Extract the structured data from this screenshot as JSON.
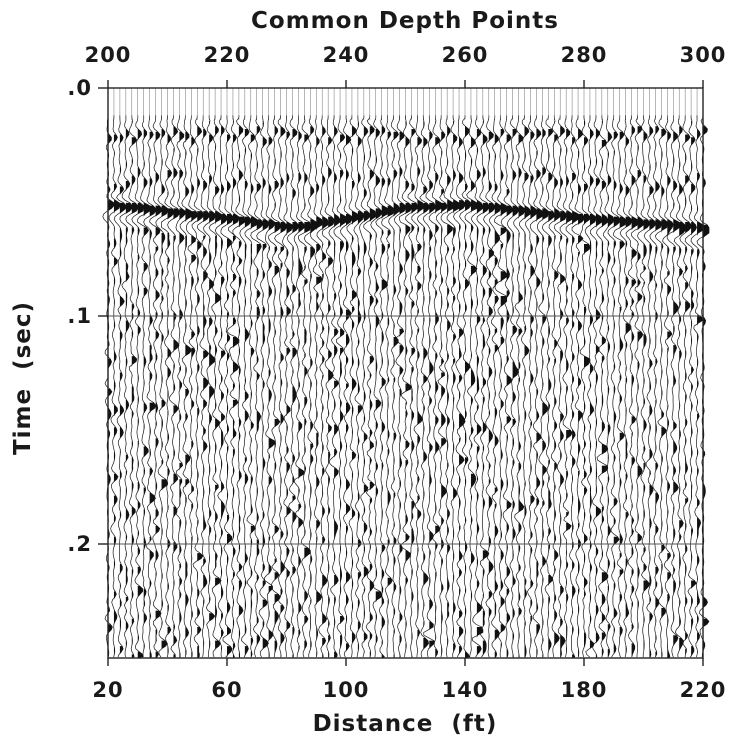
{
  "chart_data": {
    "type": "seismic-section",
    "top_axis": {
      "title": "Common Depth Points",
      "range": [
        200,
        300
      ],
      "ticks": [
        {
          "value": 200,
          "label": "200"
        },
        {
          "value": 220,
          "label": "220"
        },
        {
          "value": 240,
          "label": "240"
        },
        {
          "value": 260,
          "label": "260"
        },
        {
          "value": 280,
          "label": "280"
        },
        {
          "value": 300,
          "label": "300"
        }
      ]
    },
    "bottom_axis": {
      "title": "Distance  (ft)",
      "range": [
        20,
        220
      ],
      "ticks": [
        {
          "value": 20,
          "label": "20"
        },
        {
          "value": 60,
          "label": "60"
        },
        {
          "value": 100,
          "label": "100"
        },
        {
          "value": 140,
          "label": "140"
        },
        {
          "value": 180,
          "label": "180"
        },
        {
          "value": 220,
          "label": "220"
        }
      ]
    },
    "left_axis": {
      "title": "Time  (sec)",
      "range": [
        0.0,
        0.25
      ],
      "inverted": true,
      "ticks": [
        {
          "value": 0.0,
          "label": ".0"
        },
        {
          "value": 0.1,
          "label": ".1"
        },
        {
          "value": 0.2,
          "label": ".2"
        }
      ]
    },
    "traces": {
      "first_cdp": 200,
      "last_cdp": 300,
      "cdp_step": 1,
      "display": "wiggle-trace variable-area (positive lobes filled black)"
    },
    "timing_lines_sec": [
      0.0,
      0.1,
      0.2
    ],
    "reflector_sec": [
      {
        "distance_ft": 20,
        "time_sec": 0.051
      },
      {
        "distance_ft": 40,
        "time_sec": 0.054
      },
      {
        "distance_ft": 60,
        "time_sec": 0.057
      },
      {
        "distance_ft": 80,
        "time_sec": 0.061
      },
      {
        "distance_ft": 100,
        "time_sec": 0.057
      },
      {
        "distance_ft": 120,
        "time_sec": 0.052
      },
      {
        "distance_ft": 140,
        "time_sec": 0.051
      },
      {
        "distance_ft": 160,
        "time_sec": 0.054
      },
      {
        "distance_ft": 180,
        "time_sec": 0.057
      },
      {
        "distance_ft": 200,
        "time_sec": 0.059
      },
      {
        "distance_ft": 220,
        "time_sec": 0.061
      }
    ],
    "grid": false,
    "legend": "none"
  }
}
